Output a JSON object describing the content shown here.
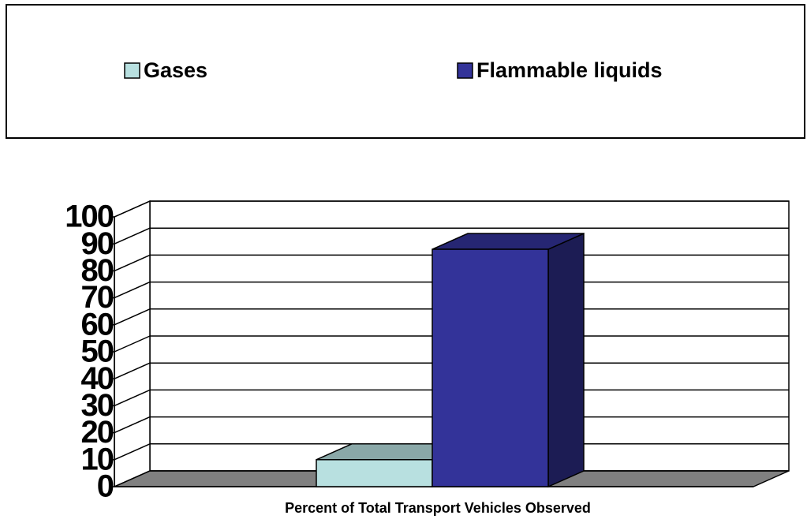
{
  "chart_data": {
    "type": "bar",
    "x_label": "Percent of Total Transport Vehicles Observed",
    "categories": [
      null
    ],
    "series": [
      {
        "name": "Gases",
        "color": "#b8e0e0",
        "values": [
          10
        ]
      },
      {
        "name": "Flammable liquids",
        "color": "#333399",
        "values": [
          88
        ]
      }
    ],
    "ylim": [
      0,
      100
    ],
    "yticks": [
      0,
      10,
      20,
      30,
      40,
      50,
      60,
      70,
      80,
      90,
      100
    ],
    "grid": true,
    "legend": "top"
  }
}
